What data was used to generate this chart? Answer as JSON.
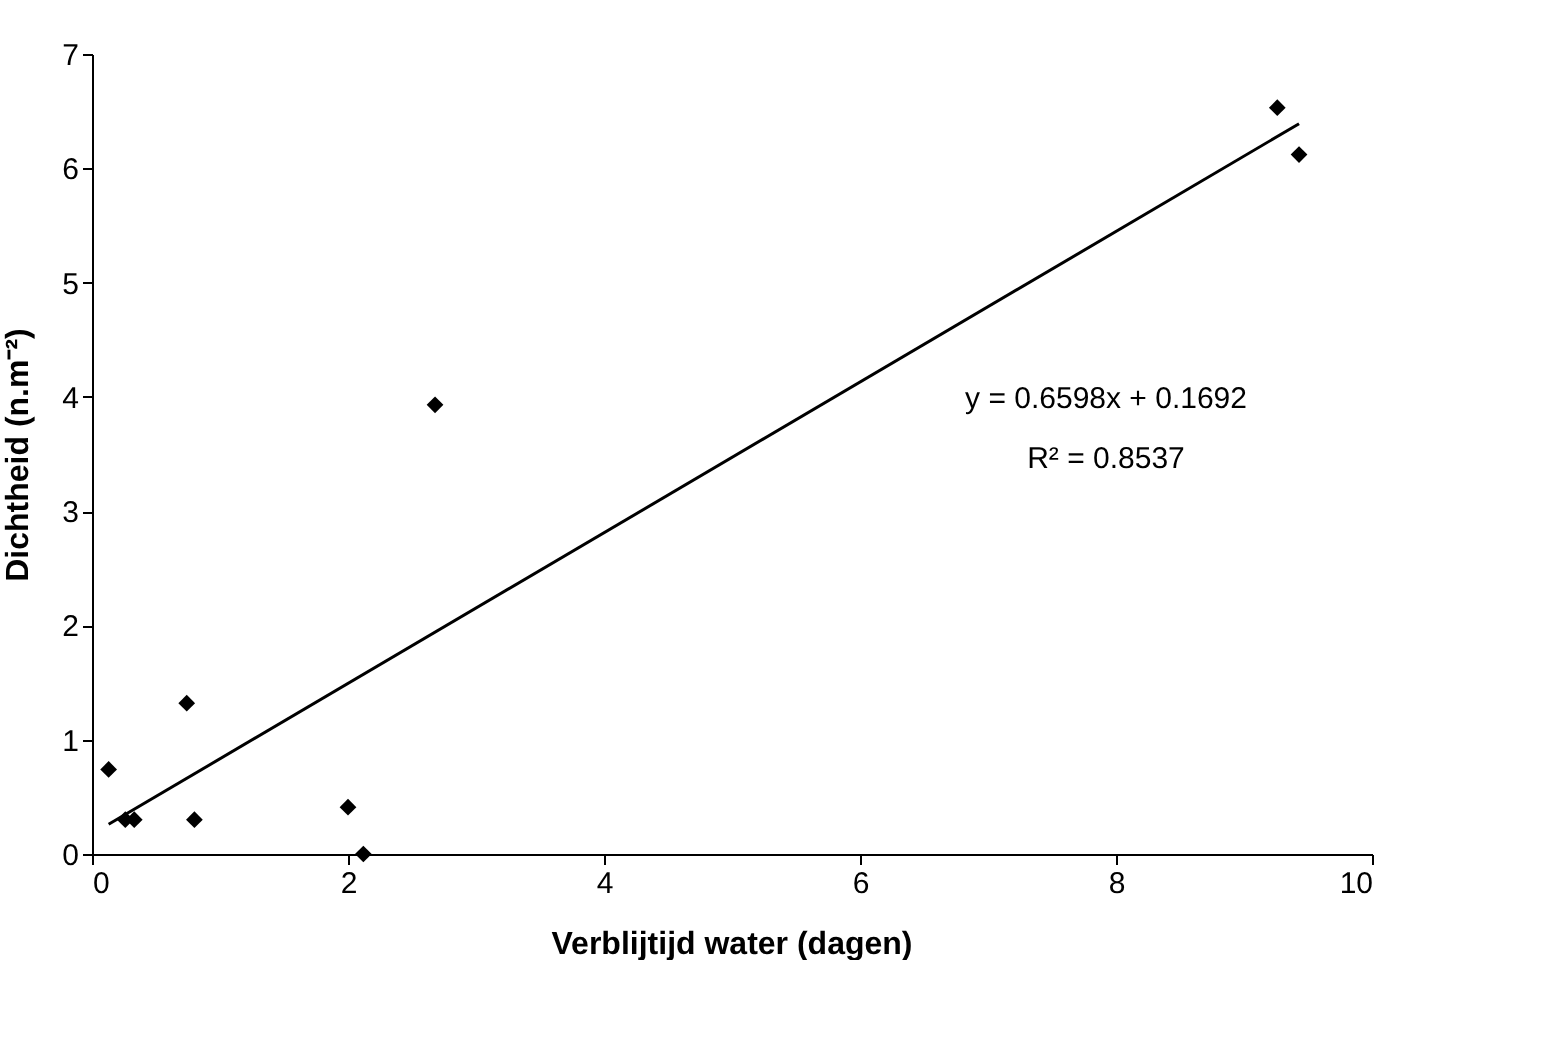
{
  "chart_data": {
    "type": "scatter",
    "xlabel": "Verblijtijd water (dagen)",
    "ylabel": "Dichtheid (n.m⁻²)",
    "annotations": [
      "y = 0.6598x + 0.1692",
      "R² = 0.8537"
    ],
    "series": [
      {
        "color": "#000000",
        "marker": "diamond",
        "x": [
          0.13,
          0.26,
          0.33,
          0.74,
          0.8,
          2.0,
          2.12,
          2.68,
          9.26,
          9.43
        ],
        "values": [
          0.74,
          0.3,
          0.3,
          1.32,
          0.3,
          0.41,
          0.0,
          3.93,
          6.53,
          6.12
        ]
      },
      {
        "type": "line",
        "color": "#000000",
        "line_style": "solid",
        "x": [
          0.13,
          9.43
        ],
        "values": [
          0.26,
          6.39
        ]
      }
    ],
    "xlim": [
      0,
      10
    ],
    "ylim": [
      0,
      7
    ],
    "xticks": [
      0,
      2,
      4,
      6,
      8,
      10
    ],
    "yticks": [
      0,
      1,
      2,
      3,
      4,
      5,
      6,
      7
    ],
    "grid": false
  }
}
